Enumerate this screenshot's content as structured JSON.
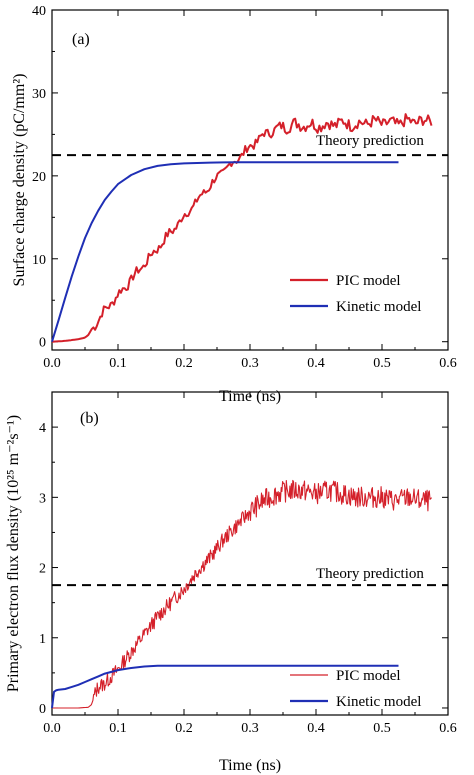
{
  "colors": {
    "pic": "#d4202a",
    "kinetic": "#1f2fb5",
    "theory": "#000000"
  },
  "chart_data": [
    {
      "type": "line",
      "panel_label": "(a)",
      "xlabel": "Time (ns)",
      "ylabel": "Surface charge density (pC/mm²)",
      "xlim": [
        0.0,
        0.6
      ],
      "ylim": [
        -1,
        40
      ],
      "xticks": [
        0.0,
        0.1,
        0.2,
        0.3,
        0.4,
        0.5,
        0.6
      ],
      "xtick_labels": [
        "0.0",
        "0.1",
        "0.2",
        "0.3",
        "0.4",
        "0.5",
        "0.6"
      ],
      "yticks": [
        0,
        10,
        20,
        30,
        40
      ],
      "ytick_labels": [
        "0",
        "10",
        "20",
        "30",
        "40"
      ],
      "legend_position": "bottom-right",
      "theory": {
        "label": "Theory prediction",
        "value": 22.5
      },
      "series": [
        {
          "name": "PIC model",
          "x": [
            0.0,
            0.02,
            0.04,
            0.05,
            0.055,
            0.06,
            0.07,
            0.08,
            0.1,
            0.12,
            0.14,
            0.16,
            0.18,
            0.2,
            0.22,
            0.24,
            0.26,
            0.28,
            0.3,
            0.32,
            0.34,
            0.36,
            0.38,
            0.4,
            0.42,
            0.44,
            0.46,
            0.48,
            0.5,
            0.52,
            0.54,
            0.56,
            0.575
          ],
          "y": [
            0.0,
            0.1,
            0.3,
            0.5,
            0.8,
            1.5,
            2.6,
            3.8,
            5.6,
            7.5,
            9.4,
            11.3,
            13.2,
            15.1,
            17.0,
            18.9,
            20.6,
            22.0,
            23.5,
            24.9,
            25.7,
            26.1,
            26.2,
            26.1,
            26.2,
            26.4,
            26.2,
            26.5,
            26.4,
            26.3,
            26.6,
            26.5,
            26.8
          ]
        },
        {
          "name": "Kinetic model",
          "x": [
            0.0,
            0.01,
            0.02,
            0.03,
            0.04,
            0.05,
            0.06,
            0.07,
            0.08,
            0.09,
            0.1,
            0.12,
            0.14,
            0.16,
            0.18,
            0.2,
            0.22,
            0.24,
            0.26,
            0.28,
            0.3,
            0.35,
            0.4,
            0.45,
            0.5,
            0.525
          ],
          "y": [
            0.0,
            2.6,
            5.3,
            7.9,
            10.3,
            12.5,
            14.3,
            15.8,
            17.1,
            18.1,
            19.0,
            20.1,
            20.8,
            21.2,
            21.4,
            21.5,
            21.55,
            21.6,
            21.62,
            21.63,
            21.65,
            21.65,
            21.65,
            21.65,
            21.65,
            21.65
          ]
        }
      ]
    },
    {
      "type": "line",
      "panel_label": "(b)",
      "xlabel": "Time (ns)",
      "ylabel": "Primary electron flux density (10²⁵ m⁻²s⁻¹)",
      "xlim": [
        0.0,
        0.6
      ],
      "ylim": [
        -0.1,
        4.5
      ],
      "xticks": [
        0.0,
        0.1,
        0.2,
        0.3,
        0.4,
        0.5,
        0.6
      ],
      "xtick_labels": [
        "0.0",
        "0.1",
        "0.2",
        "0.3",
        "0.4",
        "0.5",
        "0.6"
      ],
      "yticks": [
        0,
        1,
        2,
        3,
        4
      ],
      "ytick_labels": [
        "0",
        "1",
        "2",
        "3",
        "4"
      ],
      "legend_position": "bottom-right",
      "theory": {
        "label": "Theory prediction",
        "value": 1.75
      },
      "series": [
        {
          "name": "PIC model",
          "x": [
            0.0,
            0.02,
            0.04,
            0.055,
            0.06,
            0.065,
            0.07,
            0.08,
            0.1,
            0.12,
            0.14,
            0.16,
            0.18,
            0.2,
            0.22,
            0.24,
            0.26,
            0.28,
            0.3,
            0.32,
            0.34,
            0.36,
            0.38,
            0.4,
            0.42,
            0.44,
            0.46,
            0.48,
            0.5,
            0.52,
            0.54,
            0.56,
            0.575
          ],
          "y": [
            0.0,
            0.0,
            0.0,
            0.01,
            0.05,
            0.2,
            0.3,
            0.35,
            0.55,
            0.8,
            1.05,
            1.3,
            1.5,
            1.7,
            1.95,
            2.15,
            2.4,
            2.6,
            2.8,
            2.95,
            3.05,
            3.1,
            3.1,
            3.05,
            3.1,
            3.05,
            3.0,
            3.0,
            3.0,
            2.95,
            3.0,
            2.95,
            2.95
          ]
        },
        {
          "name": "Kinetic model",
          "x": [
            0.0,
            0.003,
            0.006,
            0.01,
            0.02,
            0.03,
            0.04,
            0.05,
            0.06,
            0.07,
            0.08,
            0.1,
            0.12,
            0.14,
            0.16,
            0.2,
            0.3,
            0.4,
            0.5,
            0.525
          ],
          "y": [
            0.0,
            0.23,
            0.25,
            0.26,
            0.27,
            0.3,
            0.33,
            0.37,
            0.41,
            0.45,
            0.49,
            0.54,
            0.57,
            0.59,
            0.6,
            0.6,
            0.6,
            0.6,
            0.6,
            0.6
          ]
        }
      ]
    }
  ]
}
